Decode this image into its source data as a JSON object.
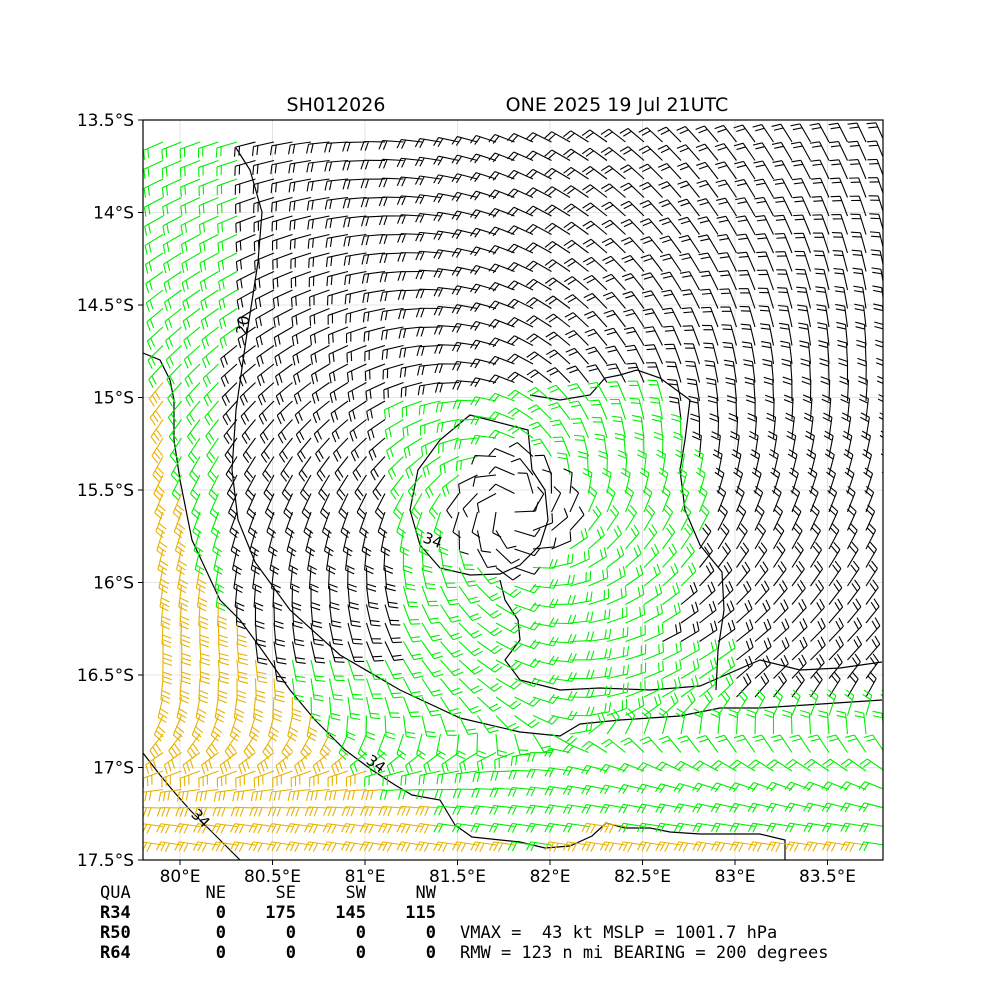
{
  "title": {
    "storm_id": "SH012026",
    "name_time": "ONE 2025 19 Jul 21UTC"
  },
  "chart_data": {
    "type": "wind_barb_map",
    "xaxis": {
      "range": [
        79.8,
        83.8
      ],
      "ticks": [
        "80°E",
        "80.5°E",
        "81°E",
        "81.5°E",
        "82°E",
        "82.5°E",
        "83°E",
        "83.5°E"
      ],
      "tick_values": [
        80,
        80.5,
        81,
        81.5,
        82,
        82.5,
        83,
        83.5
      ]
    },
    "yaxis": {
      "range": [
        -17.5,
        -13.5
      ],
      "ticks": [
        "13.5°S",
        "14°S",
        "14.5°S",
        "15°S",
        "15.5°S",
        "16°S",
        "16.5°S",
        "17°S",
        "17.5°S"
      ],
      "tick_values": [
        -13.5,
        -14,
        -14.5,
        -15,
        -15.5,
        -16,
        -16.5,
        -17,
        -17.5
      ]
    },
    "grid": true,
    "center": {
      "lon": 81.8,
      "lat": -15.6
    },
    "contour_labels": [
      "20",
      "34",
      "34",
      "34"
    ],
    "colors": {
      "below_threshold": "#000000",
      "gale_34kt": "#00ee00",
      "storm_50kt": "#e8b100"
    }
  },
  "quadrants": {
    "header": [
      "QUA",
      "NE",
      "SE",
      "SW",
      "NW"
    ],
    "rows": [
      [
        "R34",
        "0",
        "175",
        "145",
        "115"
      ],
      [
        "R50",
        "0",
        "0",
        "0",
        "0"
      ],
      [
        "R64",
        "0",
        "0",
        "0",
        "0"
      ]
    ]
  },
  "stats": {
    "line1": "VMAX =  43 kt MSLP = 1001.7 hPa",
    "line2": "RMW = 123 n mi BEARING = 200 degrees"
  }
}
